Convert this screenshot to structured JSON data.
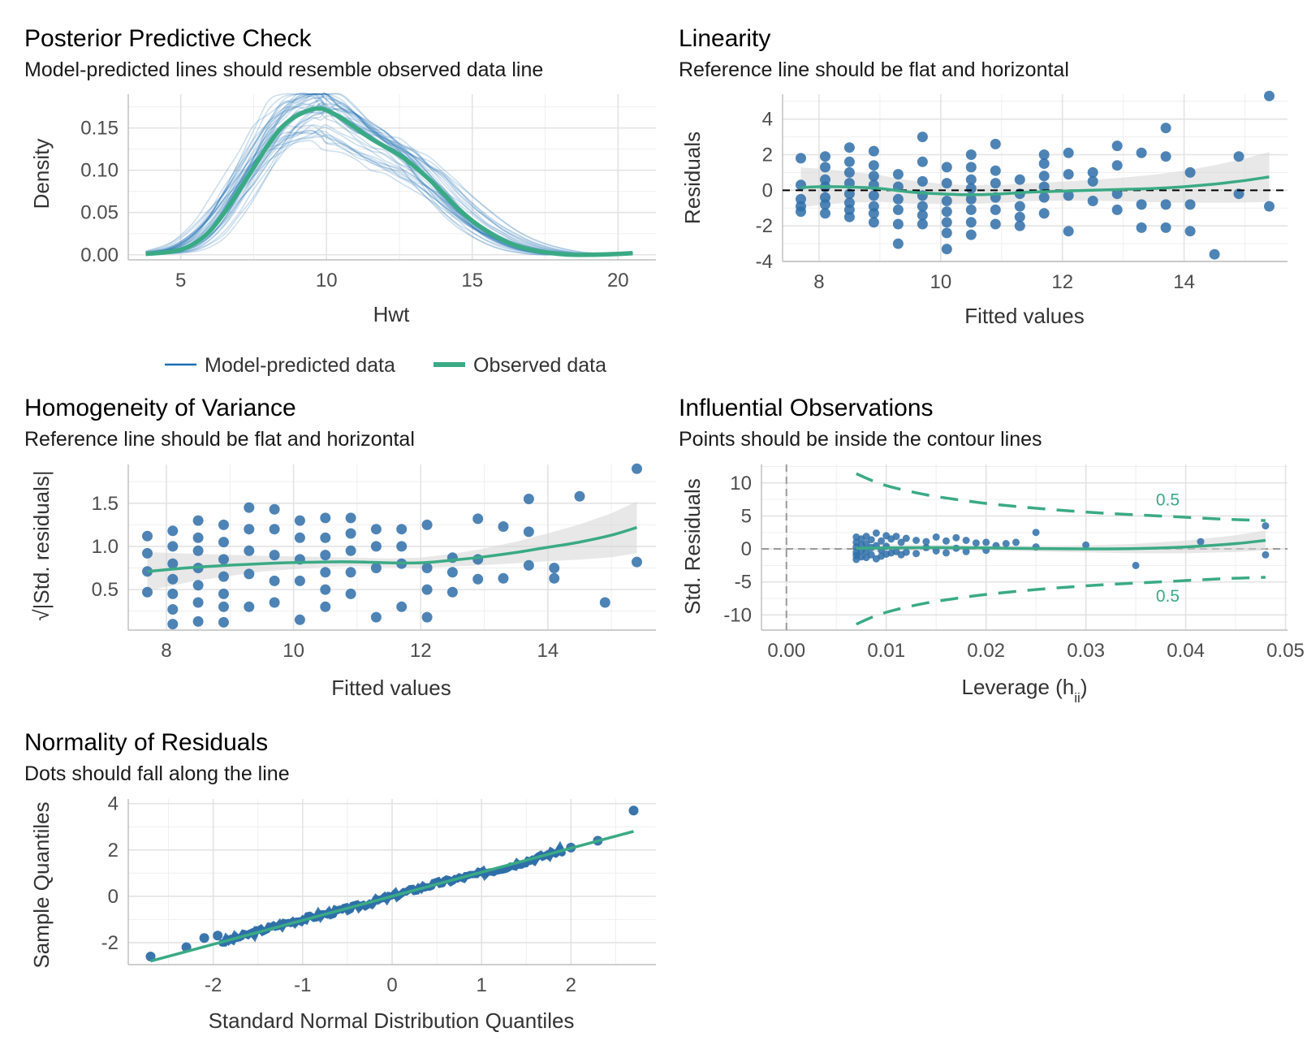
{
  "colors": {
    "predicted": "#1b6fb3",
    "observed": "#3aaa85",
    "points": "#2f6fa8",
    "grid": "#e3e3e3",
    "band": "#d6d6d6"
  },
  "chart_data": [
    {
      "id": "ppc",
      "type": "line",
      "title": "Posterior Predictive Check",
      "subtitle": "Model-predicted lines should resemble observed data line",
      "xlabel": "Hwt",
      "ylabel": "Density",
      "xlim": [
        3.2,
        21.3
      ],
      "ylim": [
        -0.006,
        0.19
      ],
      "xticks": [
        5,
        10,
        15,
        20
      ],
      "yticks": [
        0.0,
        0.05,
        0.1,
        0.15
      ],
      "ytick_labels": [
        "0.00",
        "0.05",
        "0.10",
        "0.15"
      ],
      "legend": {
        "position": "bottom",
        "items": [
          "Model-predicted data",
          "Observed data"
        ]
      },
      "observed": {
        "x": [
          3.8,
          4.5,
          5.0,
          5.5,
          6.0,
          6.5,
          7.0,
          7.5,
          8.0,
          8.5,
          9.0,
          9.5,
          9.8,
          10.0,
          10.5,
          11.0,
          11.5,
          12.0,
          12.5,
          13.0,
          13.5,
          14.0,
          14.5,
          15.0,
          15.5,
          16.0,
          16.5,
          17.0,
          17.5,
          18.0,
          18.5,
          19.0,
          20.0,
          20.5
        ],
        "y": [
          0.001,
          0.003,
          0.006,
          0.014,
          0.028,
          0.05,
          0.076,
          0.103,
          0.13,
          0.152,
          0.165,
          0.172,
          0.173,
          0.171,
          0.162,
          0.15,
          0.138,
          0.128,
          0.118,
          0.105,
          0.09,
          0.073,
          0.055,
          0.04,
          0.028,
          0.018,
          0.011,
          0.006,
          0.003,
          0.001,
          0.0,
          0.0,
          0.001,
          0.002
        ]
      },
      "predicted_draws": 40
    },
    {
      "id": "linearity",
      "type": "scatter",
      "title": "Linearity",
      "subtitle": "Reference line should be flat and horizontal",
      "xlabel": "Fitted values",
      "ylabel": "Residuals",
      "xlim": [
        7.4,
        15.7
      ],
      "ylim": [
        -4.0,
        5.4
      ],
      "xticks": [
        8,
        10,
        12,
        14
      ],
      "yticks": [
        -4,
        -2,
        0,
        2,
        4
      ],
      "reference_y": 0,
      "smooth": {
        "x": [
          7.7,
          8.0,
          8.5,
          9.0,
          9.5,
          10.0,
          10.5,
          11.0,
          11.5,
          12.0,
          12.5,
          13.0,
          13.5,
          14.0,
          14.5,
          15.0,
          15.4
        ],
        "y": [
          0.15,
          0.2,
          0.18,
          0.1,
          -0.1,
          -0.2,
          -0.25,
          -0.2,
          -0.1,
          -0.05,
          0.0,
          0.05,
          0.1,
          0.2,
          0.35,
          0.55,
          0.75
        ]
      },
      "points": {
        "x": [
          7.7,
          7.7,
          7.7,
          7.7,
          7.7,
          8.1,
          8.1,
          8.1,
          8.1,
          8.1,
          8.1,
          8.1,
          8.5,
          8.5,
          8.5,
          8.5,
          8.5,
          8.5,
          8.5,
          8.5,
          8.9,
          8.9,
          8.9,
          8.9,
          8.9,
          8.9,
          8.9,
          8.9,
          9.3,
          9.3,
          9.3,
          9.3,
          9.3,
          9.3,
          9.7,
          9.7,
          9.7,
          9.7,
          9.7,
          9.7,
          9.7,
          10.1,
          10.1,
          10.1,
          10.1,
          10.1,
          10.1,
          10.1,
          10.5,
          10.5,
          10.5,
          10.5,
          10.5,
          10.5,
          10.5,
          10.5,
          10.9,
          10.9,
          10.9,
          10.9,
          10.9,
          10.9,
          11.3,
          11.3,
          11.3,
          11.3,
          11.3,
          11.7,
          11.7,
          11.7,
          11.7,
          11.7,
          11.7,
          12.1,
          12.1,
          12.1,
          12.1,
          12.5,
          12.5,
          12.5,
          12.9,
          12.9,
          12.9,
          12.9,
          13.3,
          13.3,
          13.3,
          13.7,
          13.7,
          13.7,
          13.7,
          14.1,
          14.1,
          14.1,
          14.5,
          14.9,
          14.9,
          15.4,
          15.4
        ],
        "y": [
          1.8,
          0.3,
          -0.5,
          -0.9,
          -1.2,
          1.9,
          1.3,
          0.6,
          0.2,
          -0.4,
          -0.8,
          -1.3,
          2.4,
          1.6,
          1.0,
          0.4,
          -0.2,
          -0.7,
          -1.1,
          -1.5,
          2.2,
          1.4,
          0.8,
          0.3,
          -0.3,
          -0.9,
          -1.3,
          -1.8,
          0.9,
          0.2,
          -0.5,
          -1.1,
          -1.9,
          -3.0,
          3.0,
          1.6,
          0.5,
          -0.3,
          -0.9,
          -1.4,
          -1.9,
          1.3,
          0.4,
          -0.6,
          -1.2,
          -1.8,
          -2.4,
          -3.3,
          2.0,
          1.3,
          0.6,
          0.1,
          -0.5,
          -1.1,
          -1.8,
          -2.5,
          2.6,
          1.1,
          0.4,
          -0.4,
          -1.1,
          -1.9,
          0.6,
          -0.2,
          -0.9,
          -1.5,
          -2.0,
          2.0,
          1.5,
          0.8,
          0.2,
          -0.4,
          -1.3,
          2.1,
          0.9,
          -0.3,
          -2.3,
          1.0,
          0.5,
          -0.6,
          2.5,
          1.4,
          -0.2,
          -1.1,
          2.1,
          -0.8,
          -2.1,
          3.5,
          1.9,
          -0.8,
          -2.1,
          1.0,
          -0.8,
          -2.3,
          -3.6,
          1.9,
          -0.2,
          5.3,
          -0.9
        ]
      }
    },
    {
      "id": "homogeneity",
      "type": "scatter",
      "title": "Homogeneity of Variance",
      "subtitle": "Reference line should be flat and horizontal",
      "xlabel": "Fitted values",
      "ylabel": "√|Std. residuals|",
      "xlim": [
        7.4,
        15.7
      ],
      "ylim": [
        0.03,
        1.95
      ],
      "xticks": [
        8,
        10,
        12,
        14
      ],
      "yticks": [
        0.5,
        1.0,
        1.5
      ],
      "ytick_labels": [
        "0.5",
        "1.0",
        "1.5"
      ],
      "smooth": {
        "x": [
          7.7,
          8.5,
          9.5,
          10.5,
          11.0,
          11.5,
          12.0,
          12.5,
          13.0,
          13.5,
          14.0,
          14.5,
          15.0,
          15.4
        ],
        "y": [
          0.71,
          0.76,
          0.8,
          0.82,
          0.82,
          0.81,
          0.81,
          0.84,
          0.88,
          0.93,
          0.99,
          1.05,
          1.13,
          1.22
        ]
      },
      "points": {
        "x": [
          7.7,
          7.7,
          7.7,
          7.7,
          8.1,
          8.1,
          8.1,
          8.1,
          8.1,
          8.1,
          8.1,
          8.5,
          8.5,
          8.5,
          8.5,
          8.5,
          8.5,
          8.5,
          8.9,
          8.9,
          8.9,
          8.9,
          8.9,
          8.9,
          8.9,
          9.3,
          9.3,
          9.3,
          9.3,
          9.3,
          9.7,
          9.7,
          9.7,
          9.7,
          9.7,
          10.1,
          10.1,
          10.1,
          10.1,
          10.1,
          10.5,
          10.5,
          10.5,
          10.5,
          10.5,
          10.5,
          10.9,
          10.9,
          10.9,
          10.9,
          10.9,
          11.3,
          11.3,
          11.3,
          11.3,
          11.7,
          11.7,
          11.7,
          11.7,
          12.1,
          12.1,
          12.1,
          12.1,
          12.5,
          12.5,
          12.5,
          12.9,
          12.9,
          12.9,
          13.3,
          13.3,
          13.7,
          13.7,
          13.7,
          14.1,
          14.1,
          14.5,
          14.9,
          15.4,
          15.4
        ],
        "y": [
          1.12,
          0.92,
          0.71,
          0.47,
          1.18,
          1.0,
          0.8,
          0.62,
          0.45,
          0.27,
          0.1,
          1.3,
          1.1,
          0.95,
          0.75,
          0.55,
          0.35,
          0.13,
          1.25,
          1.05,
          0.85,
          0.65,
          0.45,
          0.3,
          0.12,
          1.45,
          1.2,
          0.95,
          0.68,
          0.3,
          1.43,
          1.2,
          0.9,
          0.6,
          0.35,
          1.3,
          1.1,
          0.85,
          0.6,
          0.15,
          1.33,
          1.1,
          0.9,
          0.7,
          0.5,
          0.3,
          1.33,
          1.15,
          0.95,
          0.7,
          0.45,
          1.2,
          1.0,
          0.75,
          0.18,
          1.2,
          1.0,
          0.8,
          0.3,
          1.25,
          0.75,
          0.5,
          0.18,
          0.87,
          0.7,
          0.47,
          1.32,
          0.85,
          0.62,
          1.23,
          0.63,
          1.55,
          1.17,
          0.78,
          0.75,
          0.63,
          1.58,
          0.35,
          1.9,
          0.82
        ]
      }
    },
    {
      "id": "influential",
      "type": "scatter",
      "title": "Influential Observations",
      "subtitle": "Points should be inside the contour lines",
      "xlabel": "Leverage (hii)",
      "ylabel": "Std. Residuals",
      "xlim": [
        -0.0025,
        0.0502
      ],
      "ylim": [
        -12.3,
        12.8
      ],
      "xticks": [
        0.0,
        0.01,
        0.02,
        0.03,
        0.04,
        0.05
      ],
      "xtick_labels": [
        "0.00",
        "0.01",
        "0.02",
        "0.03",
        "0.04",
        "0.05"
      ],
      "yticks": [
        -10,
        -5,
        0,
        5,
        10
      ],
      "contour_label": "0.5",
      "contour_upper": {
        "x": [
          0.007,
          0.009,
          0.011,
          0.014,
          0.017,
          0.02,
          0.024,
          0.028,
          0.032,
          0.036,
          0.04,
          0.044,
          0.048
        ],
        "y": [
          11.4,
          10.1,
          9.2,
          8.2,
          7.5,
          6.9,
          6.3,
          5.8,
          5.4,
          5.1,
          4.8,
          4.5,
          4.3
        ]
      },
      "contour_lower": {
        "x": [
          0.007,
          0.009,
          0.011,
          0.014,
          0.017,
          0.02,
          0.024,
          0.028,
          0.032,
          0.036,
          0.04,
          0.044,
          0.048
        ],
        "y": [
          -11.4,
          -10.1,
          -9.2,
          -8.2,
          -7.5,
          -6.9,
          -6.3,
          -5.8,
          -5.4,
          -5.1,
          -4.8,
          -4.5,
          -4.3
        ]
      },
      "smooth": {
        "x": [
          0.007,
          0.01,
          0.015,
          0.02,
          0.025,
          0.03,
          0.035,
          0.04,
          0.045,
          0.048
        ],
        "y": [
          0.1,
          0.15,
          0.2,
          0.15,
          0.05,
          0.0,
          0.05,
          0.3,
          0.8,
          1.3
        ]
      },
      "points": {
        "x": [
          0.007,
          0.007,
          0.007,
          0.007,
          0.007,
          0.007,
          0.0075,
          0.0075,
          0.0075,
          0.0075,
          0.008,
          0.008,
          0.008,
          0.008,
          0.0085,
          0.0085,
          0.0085,
          0.009,
          0.009,
          0.009,
          0.0095,
          0.0095,
          0.0095,
          0.01,
          0.01,
          0.01,
          0.0105,
          0.0105,
          0.011,
          0.011,
          0.0115,
          0.0115,
          0.012,
          0.012,
          0.013,
          0.013,
          0.014,
          0.014,
          0.015,
          0.015,
          0.016,
          0.016,
          0.017,
          0.017,
          0.018,
          0.018,
          0.019,
          0.02,
          0.02,
          0.021,
          0.022,
          0.023,
          0.025,
          0.025,
          0.03,
          0.035,
          0.0415,
          0.048,
          0.048
        ],
        "y": [
          1.8,
          1.0,
          0.3,
          -0.5,
          -1.0,
          -1.6,
          1.5,
          0.6,
          -0.3,
          -1.2,
          1.9,
          0.8,
          -0.4,
          -1.3,
          1.4,
          0.2,
          -0.9,
          2.4,
          0.5,
          -1.5,
          1.2,
          -0.2,
          -1.1,
          2.0,
          0.4,
          -0.8,
          1.5,
          -0.6,
          1.9,
          -0.4,
          1.0,
          -0.9,
          1.6,
          -0.5,
          1.3,
          -0.7,
          1.1,
          0.2,
          1.8,
          -0.3,
          1.2,
          -0.6,
          1.7,
          0.1,
          1.3,
          -0.4,
          0.9,
          1.0,
          -0.2,
          0.5,
          0.8,
          1.0,
          2.5,
          0.3,
          0.6,
          -2.5,
          1.1,
          3.5,
          -0.9
        ]
      }
    },
    {
      "id": "normality",
      "type": "scatter",
      "title": "Normality of Residuals",
      "subtitle": "Dots should fall along the line",
      "xlabel": "Standard Normal Distribution Quantiles",
      "ylabel": "Sample Quantiles",
      "xlim": [
        -2.95,
        2.95
      ],
      "ylim": [
        -2.95,
        4.2
      ],
      "xticks": [
        -2,
        -1,
        0,
        1,
        2
      ],
      "yticks": [
        -2,
        0,
        2,
        4
      ],
      "reference_line": {
        "x": [
          -2.7,
          2.7
        ],
        "y": [
          -2.8,
          2.8
        ]
      },
      "extreme_points": {
        "x": [
          -2.7,
          -2.3,
          -2.1,
          -1.95,
          2.0,
          2.3,
          2.7
        ],
        "y": [
          -2.6,
          -2.2,
          -1.8,
          -1.7,
          2.1,
          2.4,
          3.7
        ]
      }
    }
  ]
}
